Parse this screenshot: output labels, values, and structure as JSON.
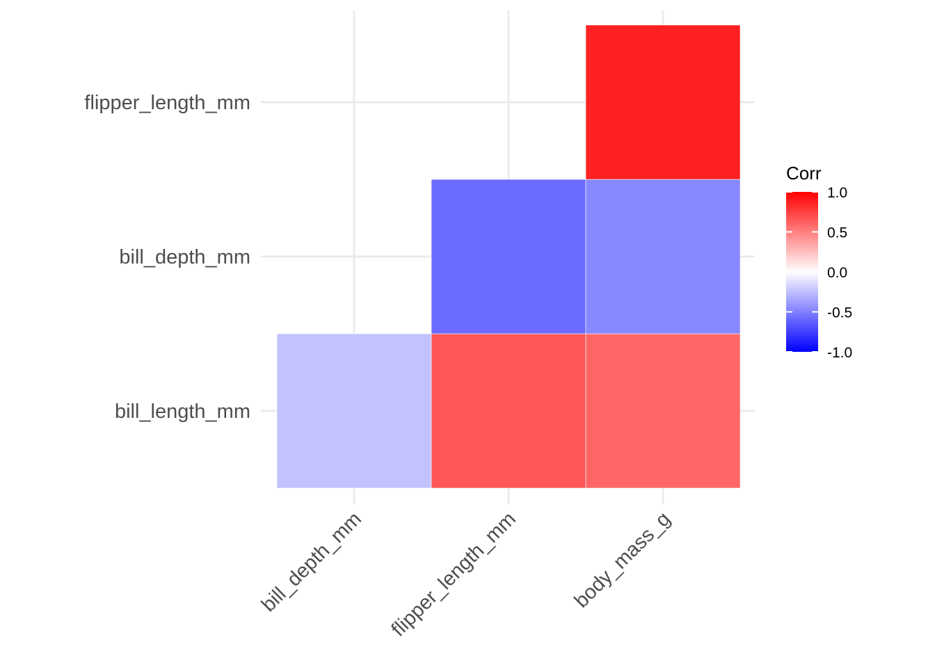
{
  "chart_data": {
    "type": "heatmap",
    "title": "",
    "xlabel": "",
    "ylabel": "",
    "x_categories": [
      "bill_depth_mm",
      "flipper_length_mm",
      "body_mass_g"
    ],
    "y_categories": [
      "bill_length_mm",
      "bill_depth_mm",
      "flipper_length_mm"
    ],
    "cells": [
      {
        "x": "bill_depth_mm",
        "y": "bill_length_mm",
        "value": -0.24
      },
      {
        "x": "flipper_length_mm",
        "y": "bill_length_mm",
        "value": 0.66
      },
      {
        "x": "body_mass_g",
        "y": "bill_length_mm",
        "value": 0.6
      },
      {
        "x": "flipper_length_mm",
        "y": "bill_depth_mm",
        "value": -0.58
      },
      {
        "x": "body_mass_g",
        "y": "bill_depth_mm",
        "value": -0.47
      },
      {
        "x": "body_mass_g",
        "y": "flipper_length_mm",
        "value": 0.87
      }
    ],
    "color_scale": {
      "low": "#0000ff",
      "mid": "#ffffff",
      "high": "#ff0000",
      "limits": [
        -1,
        1
      ]
    },
    "legend": {
      "title": "Corr",
      "ticks": [
        "1.0",
        "0.5",
        "0.0",
        "-0.5",
        "-1.0"
      ],
      "placement": "right"
    },
    "grid": true
  }
}
